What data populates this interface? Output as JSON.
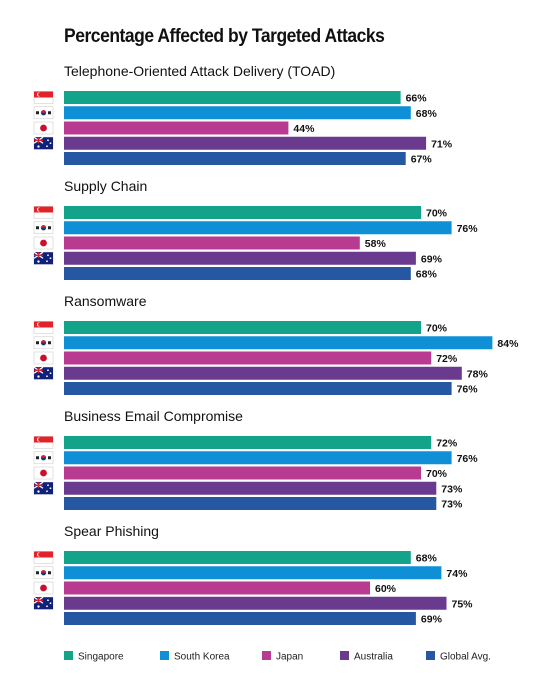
{
  "chart_data": {
    "type": "bar",
    "orientation": "horizontal",
    "title": "Percentage Affected by Targeted Attacks",
    "value_suffix": "%",
    "xlim": [
      0,
      100
    ],
    "grid": false,
    "legend_position": "bottom",
    "series": [
      {
        "name": "Singapore",
        "color": "#13a38b",
        "flag": "singapore-flag-icon"
      },
      {
        "name": "South Korea",
        "color": "#0f8fd6",
        "flag": "south-korea-flag-icon"
      },
      {
        "name": "Japan",
        "color": "#b83a91",
        "flag": "japan-flag-icon"
      },
      {
        "name": "Australia",
        "color": "#6a3a8e",
        "flag": "australia-flag-icon"
      },
      {
        "name": "Global Avg.",
        "color": "#2657a3",
        "flag": null
      }
    ],
    "categories": [
      "Telephone-Oriented Attack Delivery (TOAD)",
      "Supply Chain",
      "Ransomware",
      "Business Email Compromise",
      "Spear Phishing"
    ],
    "values": [
      [
        66,
        68,
        44,
        71,
        67
      ],
      [
        70,
        76,
        58,
        69,
        68
      ],
      [
        70,
        84,
        72,
        78,
        76
      ],
      [
        72,
        76,
        70,
        73,
        73
      ],
      [
        68,
        74,
        60,
        75,
        69
      ]
    ]
  }
}
